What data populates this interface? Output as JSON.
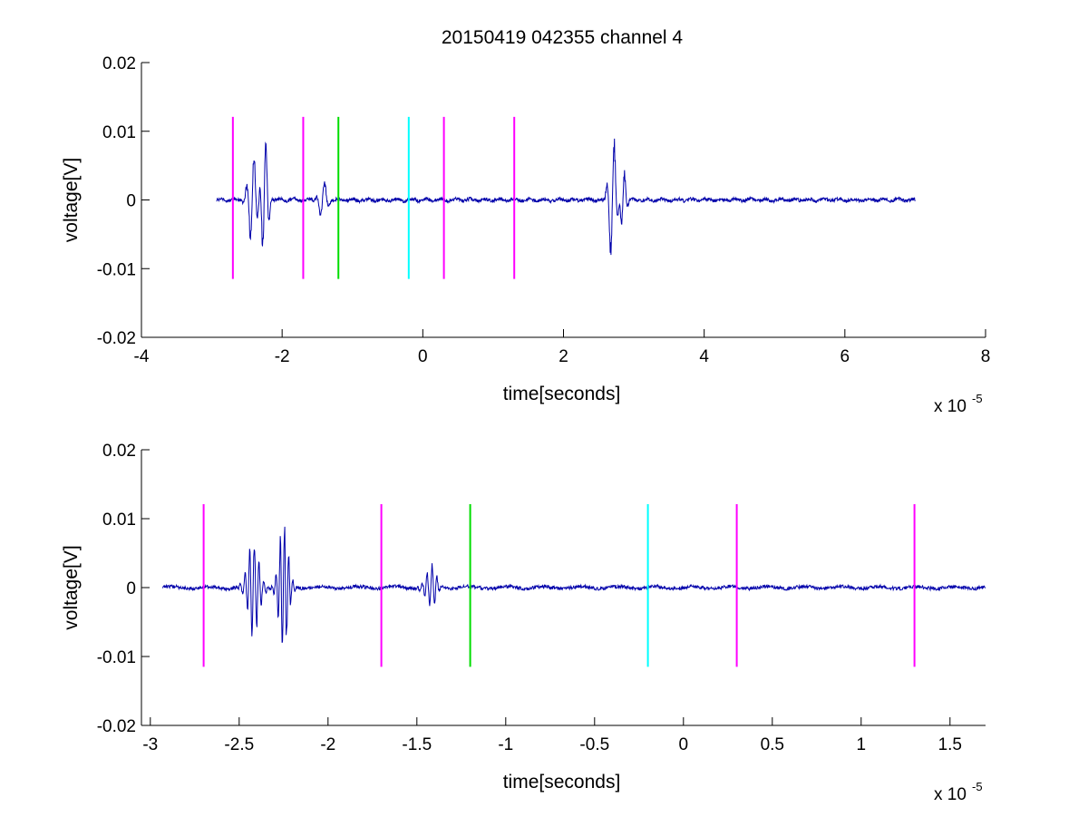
{
  "figure": {
    "title": "20150419 042355 channel 4"
  },
  "chart_data": [
    {
      "type": "line",
      "xlabel": "time[seconds]",
      "ylabel": "voltage[V]",
      "x_exponent": {
        "base": "x 10",
        "power": "-5"
      },
      "xlim": [
        -4,
        8
      ],
      "ylim": [
        -0.02,
        0.02
      ],
      "xticks": [
        -4,
        -2,
        0,
        2,
        4,
        6,
        8
      ],
      "xtick_labels": [
        "-4",
        "-2",
        "0",
        "2",
        "4",
        "6",
        "8"
      ],
      "yticks": [
        -0.02,
        -0.01,
        0,
        0.01,
        0.02
      ],
      "ytick_labels": [
        "-0.02",
        "-0.01",
        "0",
        "0.01",
        "0.02"
      ],
      "grid": false,
      "signal": {
        "color": "#0000aa",
        "x_range": [
          -2.93,
          7.0
        ],
        "baseline_noise": 0.00025,
        "bursts": [
          {
            "center": -2.42,
            "amplitude": 0.0075,
            "width": 0.08,
            "freq": 9.0
          },
          {
            "center": -2.25,
            "amplitude": 0.011,
            "width": 0.06,
            "freq": 10.0
          },
          {
            "center": -1.42,
            "amplitude": 0.0035,
            "width": 0.07,
            "freq": 8.0
          },
          {
            "center": 2.7,
            "amplitude": 0.0105,
            "width": 0.07,
            "freq": 9.0
          },
          {
            "center": 2.85,
            "amplitude": 0.0055,
            "width": 0.05,
            "freq": 10.0
          }
        ]
      },
      "markers": [
        {
          "x": -2.7,
          "color": "#ff00ff",
          "y_range": [
            -0.0115,
            0.0121
          ]
        },
        {
          "x": -1.7,
          "color": "#ff00ff",
          "y_range": [
            -0.0115,
            0.0121
          ]
        },
        {
          "x": -1.2,
          "color": "#00dd00",
          "y_range": [
            -0.0115,
            0.0121
          ]
        },
        {
          "x": -0.2,
          "color": "#00ffff",
          "y_range": [
            -0.0115,
            0.0121
          ]
        },
        {
          "x": 0.3,
          "color": "#ff00ff",
          "y_range": [
            -0.0115,
            0.0121
          ]
        },
        {
          "x": 1.3,
          "color": "#ff00ff",
          "y_range": [
            -0.0115,
            0.0121
          ]
        }
      ]
    },
    {
      "type": "line",
      "xlabel": "time[seconds]",
      "ylabel": "voltage[V]",
      "x_exponent": {
        "base": "x 10",
        "power": "-5"
      },
      "xlim": [
        -3.05,
        1.7
      ],
      "ylim": [
        -0.02,
        0.02
      ],
      "xticks": [
        -3,
        -2.5,
        -2,
        -1.5,
        -1,
        -0.5,
        0,
        0.5,
        1,
        1.5
      ],
      "xtick_labels": [
        "-3",
        "-2.5",
        "-2",
        "-1.5",
        "-1",
        "-0.5",
        "0",
        "0.5",
        "1",
        "1.5"
      ],
      "yticks": [
        -0.02,
        -0.01,
        0,
        0.01,
        0.02
      ],
      "ytick_labels": [
        "-0.02",
        "-0.01",
        "0",
        "0.01",
        "0.02"
      ],
      "grid": false,
      "signal": {
        "color": "#0000aa",
        "x_range": [
          -2.93,
          1.7
        ],
        "baseline_noise": 0.00025,
        "bursts": [
          {
            "center": -2.42,
            "amplitude": 0.0075,
            "width": 0.045,
            "freq": 38.0
          },
          {
            "center": -2.25,
            "amplitude": 0.011,
            "width": 0.035,
            "freq": 42.0
          },
          {
            "center": -1.42,
            "amplitude": 0.0035,
            "width": 0.04,
            "freq": 36.0
          }
        ]
      },
      "markers": [
        {
          "x": -2.7,
          "color": "#ff00ff",
          "y_range": [
            -0.0115,
            0.0121
          ]
        },
        {
          "x": -1.7,
          "color": "#ff00ff",
          "y_range": [
            -0.0115,
            0.0121
          ]
        },
        {
          "x": -1.2,
          "color": "#00dd00",
          "y_range": [
            -0.0115,
            0.0121
          ]
        },
        {
          "x": -0.2,
          "color": "#00ffff",
          "y_range": [
            -0.0115,
            0.0121
          ]
        },
        {
          "x": 0.3,
          "color": "#ff00ff",
          "y_range": [
            -0.0115,
            0.0121
          ]
        },
        {
          "x": 1.3,
          "color": "#ff00ff",
          "y_range": [
            -0.0115,
            0.0121
          ]
        }
      ]
    }
  ]
}
